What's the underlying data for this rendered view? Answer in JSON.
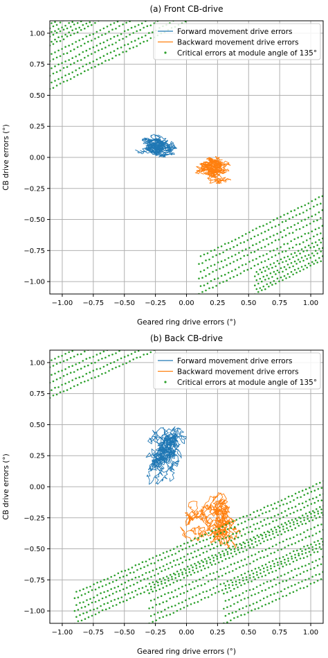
{
  "chart_data": [
    {
      "type": "line",
      "title": "(a) Front CB-drive",
      "xlabel": "Geared ring drive errors (°)",
      "ylabel": "CB drive errors (°)",
      "xlim": [
        -1.1,
        1.1
      ],
      "ylim": [
        -1.1,
        1.1
      ],
      "xticks": [
        -1.0,
        -0.75,
        -0.5,
        -0.25,
        0.0,
        0.25,
        0.5,
        0.75,
        1.0
      ],
      "yticks": [
        -1.0,
        -0.75,
        -0.5,
        -0.25,
        0.0,
        0.25,
        0.5,
        0.75,
        1.0
      ],
      "xtick_labels": [
        "−1.00",
        "−0.75",
        "−0.50",
        "−0.25",
        "0.00",
        "0.25",
        "0.50",
        "0.75",
        "1.00"
      ],
      "ytick_labels": [
        "−1.00",
        "−0.75",
        "−0.50",
        "−0.25",
        "0.00",
        "0.25",
        "0.50",
        "0.75",
        "1.00"
      ],
      "grid": true,
      "legend_position": "top-right",
      "series": [
        {
          "name": "Forward movement drive errors",
          "kind": "line",
          "color": "#1f77b4",
          "cx": -0.2,
          "cy": 0.02,
          "x_span": [
            -0.5,
            0.05
          ],
          "y_span": [
            -0.08,
            0.24
          ]
        },
        {
          "name": "Backward movement drive errors",
          "kind": "line",
          "color": "#ff7f0e",
          "cx": 0.22,
          "cy": -0.03,
          "x_span": [
            -0.05,
            0.52
          ],
          "y_span": [
            -0.24,
            0.06
          ]
        },
        {
          "name": "Critical errors at module angle of 135°",
          "kind": "scatter",
          "color": "#2ca02c",
          "bands": [
            {
              "x0": -1.1,
              "y0": 0.55,
              "slope": 0.5,
              "width": 0.28
            },
            {
              "x0": -1.1,
              "y0": 0.9,
              "slope": 0.5,
              "width": 0.18
            },
            {
              "x0": 0.1,
              "y0": -1.1,
              "slope": 0.5,
              "width": 0.3
            },
            {
              "x0": 0.55,
              "y0": -1.1,
              "slope": 0.5,
              "width": 0.18
            }
          ]
        }
      ]
    },
    {
      "type": "line",
      "title": "(b) Back CB-drive",
      "xlabel": "Geared ring drive errors (°)",
      "ylabel": "CB drive errors (°)",
      "xlim": [
        -1.1,
        1.1
      ],
      "ylim": [
        -1.1,
        1.1
      ],
      "xticks": [
        -1.0,
        -0.75,
        -0.5,
        -0.25,
        0.0,
        0.25,
        0.5,
        0.75,
        1.0
      ],
      "yticks": [
        -1.0,
        -0.75,
        -0.5,
        -0.25,
        0.0,
        0.25,
        0.5,
        0.75,
        1.0
      ],
      "xtick_labels": [
        "−1.00",
        "−0.75",
        "−0.50",
        "−0.25",
        "0.00",
        "0.25",
        "0.50",
        "0.75",
        "1.00"
      ],
      "ytick_labels": [
        "−1.00",
        "−0.75",
        "−0.50",
        "−0.25",
        "0.00",
        "0.25",
        "0.50",
        "0.75",
        "1.00"
      ],
      "grid": true,
      "legend_position": "top-right",
      "series": [
        {
          "name": "Forward movement drive errors",
          "kind": "line",
          "color": "#1f77b4",
          "cx": -0.1,
          "cy": 0.1,
          "x_span": [
            -0.5,
            0.12
          ],
          "y_span": [
            -0.08,
            0.62
          ]
        },
        {
          "name": "Backward movement drive errors",
          "kind": "line",
          "color": "#ff7f0e",
          "cx": 0.15,
          "cy": -0.15,
          "x_span": [
            -0.08,
            0.52
          ],
          "y_span": [
            -0.6,
            0.1
          ]
        },
        {
          "name": "Critical errors at module angle of 135°",
          "kind": "scatter",
          "color": "#2ca02c",
          "bands": [
            {
              "x0": -1.1,
              "y0": 0.72,
              "slope": 0.45,
              "width": 0.3
            },
            {
              "x0": -0.9,
              "y0": -1.1,
              "slope": 0.45,
              "width": 0.25
            },
            {
              "x0": -0.3,
              "y0": -1.1,
              "slope": 0.45,
              "width": 0.3
            },
            {
              "x0": 0.3,
              "y0": -1.1,
              "slope": 0.45,
              "width": 0.3
            }
          ]
        }
      ]
    }
  ]
}
